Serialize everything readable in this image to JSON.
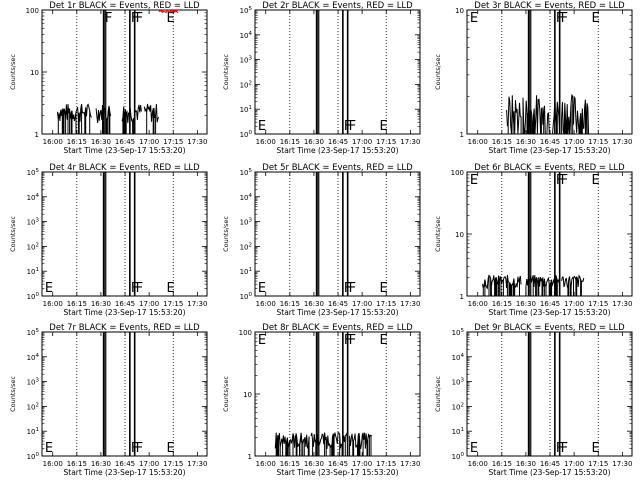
{
  "panel_x_axis_label": "Start Time (23-Sep-17 15:53:20)",
  "panel_y_axis_label": "Counts/sec",
  "x_tick_labels": [
    "16:00",
    "16:15",
    "16:30",
    "16:45",
    "17:00",
    "17:15",
    "17:30"
  ],
  "colors": {
    "events": "#000000",
    "lld": "#ff0000",
    "background": "#ffffff"
  },
  "chart_data": [
    {
      "type": "line",
      "title": "Det 1r BLACK = Events, RED = LLD",
      "xlabel": "Start Time (23-Sep-17 15:53:20)",
      "ylabel": "Counts/sec",
      "yscale": "log",
      "ylim": [
        1,
        100
      ],
      "y_tick_labels": [
        "1",
        "10",
        "100"
      ],
      "flags": [
        {
          "label": "F",
          "pos": "top"
        },
        {
          "label": "F",
          "pos": "top"
        },
        {
          "label": "F",
          "pos": "top"
        },
        {
          "label": "E",
          "pos": "top"
        }
      ],
      "series": [
        {
          "name": "Events",
          "color": "#000000",
          "level": 2.3,
          "spread": 0.35,
          "segments": [
            [
              16.05,
              16.4
            ],
            [
              16.45,
              16.6
            ],
            [
              16.72,
              16.92
            ],
            [
              16.95,
              17.1
            ]
          ]
        },
        {
          "name": "LLD",
          "color": "#ff0000",
          "level": 95,
          "spread": 0.05,
          "segments": [
            [
              17.1,
              17.3
            ]
          ]
        }
      ]
    },
    {
      "type": "line",
      "title": "Det 2r BLACK = Events, RED = LLD",
      "xlabel": "Start Time (23-Sep-17 15:53:20)",
      "ylabel": "Counts/sec",
      "yscale": "log",
      "ylim": [
        1,
        100000
      ],
      "y_tick_labels": [
        "10^0",
        "10^1",
        "10^2",
        "10^3",
        "10^4",
        "10^5"
      ],
      "flags": [
        {
          "label": "E",
          "pos": "bottom"
        },
        {
          "label": "F",
          "pos": "bottom"
        },
        {
          "label": "F",
          "pos": "bottom"
        },
        {
          "label": "E",
          "pos": "bottom"
        }
      ],
      "series": []
    },
    {
      "type": "line",
      "title": "Det 3r BLACK = Events, RED = LLD",
      "xlabel": "Start Time (23-Sep-17 15:53:20)",
      "ylabel": "Counts/sec",
      "yscale": "log",
      "ylim": [
        1,
        10
      ],
      "y_tick_labels": [
        "1",
        "10"
      ],
      "flags": [
        {
          "label": "E",
          "pos": "top"
        },
        {
          "label": "F",
          "pos": "top"
        },
        {
          "label": "F",
          "pos": "top"
        },
        {
          "label": "E",
          "pos": "top"
        }
      ],
      "series": [
        {
          "name": "Events",
          "color": "#000000",
          "level": 1.45,
          "spread": 0.45,
          "segments": [
            [
              16.3,
              16.45
            ],
            [
              16.47,
              16.85
            ],
            [
              16.87,
              17.15
            ]
          ]
        }
      ]
    },
    {
      "type": "line",
      "title": "Det 4r BLACK = Events, RED = LLD",
      "xlabel": "Start Time (23-Sep-17 15:53:20)",
      "ylabel": "Counts/sec",
      "yscale": "log",
      "ylim": [
        1,
        100000
      ],
      "y_tick_labels": [
        "10^0",
        "10^1",
        "10^2",
        "10^3",
        "10^4",
        "10^5"
      ],
      "flags": [
        {
          "label": "E",
          "pos": "bottom"
        },
        {
          "label": "F",
          "pos": "bottom"
        },
        {
          "label": "F",
          "pos": "bottom"
        },
        {
          "label": "E",
          "pos": "bottom"
        }
      ],
      "series": []
    },
    {
      "type": "line",
      "title": "Det 5r BLACK = Events, RED = LLD",
      "xlabel": "Start Time (23-Sep-17 15:53:20)",
      "ylabel": "Counts/sec",
      "yscale": "log",
      "ylim": [
        1,
        100000
      ],
      "y_tick_labels": [
        "10^0",
        "10^1",
        "10^2",
        "10^3",
        "10^4",
        "10^5"
      ],
      "flags": [
        {
          "label": "E",
          "pos": "bottom"
        },
        {
          "label": "F",
          "pos": "bottom"
        },
        {
          "label": "F",
          "pos": "bottom"
        },
        {
          "label": "E",
          "pos": "bottom"
        }
      ],
      "series": []
    },
    {
      "type": "line",
      "title": "Det 6r BLACK = Events, RED = LLD",
      "xlabel": "Start Time (23-Sep-17 15:53:20)",
      "ylabel": "Counts/sec",
      "yscale": "log",
      "ylim": [
        1,
        100
      ],
      "y_tick_labels": [
        "1",
        "10",
        "100"
      ],
      "flags": [
        {
          "label": "E",
          "pos": "top"
        },
        {
          "label": "F",
          "pos": "top"
        },
        {
          "label": "F",
          "pos": "top"
        },
        {
          "label": "E",
          "pos": "top"
        }
      ],
      "series": [
        {
          "name": "Events",
          "color": "#000000",
          "level": 1.75,
          "spread": 0.25,
          "segments": [
            [
              16.05,
              16.45
            ],
            [
              16.5,
              16.85
            ],
            [
              16.87,
              17.1
            ]
          ]
        }
      ]
    },
    {
      "type": "line",
      "title": "Det 7r BLACK = Events, RED = LLD",
      "xlabel": "Start Time (23-Sep-17 15:53:20)",
      "ylabel": "Counts/sec",
      "yscale": "log",
      "ylim": [
        1,
        100000
      ],
      "y_tick_labels": [
        "10^0",
        "10^1",
        "10^2",
        "10^3",
        "10^4",
        "10^5"
      ],
      "flags": [
        {
          "label": "E",
          "pos": "bottom"
        },
        {
          "label": "F",
          "pos": "bottom"
        },
        {
          "label": "F",
          "pos": "bottom"
        },
        {
          "label": "E",
          "pos": "bottom"
        }
      ],
      "series": []
    },
    {
      "type": "line",
      "title": "Det 8r BLACK = Events, RED = LLD",
      "xlabel": "Start Time (23-Sep-17 15:53:20)",
      "ylabel": "Counts/sec",
      "yscale": "log",
      "ylim": [
        1,
        100
      ],
      "y_tick_labels": [
        "1",
        "10",
        "100"
      ],
      "flags": [
        {
          "label": "E",
          "pos": "top"
        },
        {
          "label": "F",
          "pos": "top"
        },
        {
          "label": "F",
          "pos": "top"
        },
        {
          "label": "E",
          "pos": "top"
        }
      ],
      "series": [
        {
          "name": "Events",
          "color": "#000000",
          "level": 1.85,
          "spread": 0.3,
          "segments": [
            [
              16.1,
              16.45
            ],
            [
              16.47,
              16.85
            ],
            [
              16.87,
              17.1
            ]
          ]
        }
      ]
    },
    {
      "type": "line",
      "title": "Det 9r BLACK = Events, RED = LLD",
      "xlabel": "Start Time (23-Sep-17 15:53:20)",
      "ylabel": "Counts/sec",
      "yscale": "log",
      "ylim": [
        1,
        100000
      ],
      "y_tick_labels": [
        "10^0",
        "10^1",
        "10^2",
        "10^3",
        "10^4",
        "10^5"
      ],
      "flags": [
        {
          "label": "E",
          "pos": "bottom"
        },
        {
          "label": "F",
          "pos": "bottom"
        },
        {
          "label": "F",
          "pos": "bottom"
        },
        {
          "label": "E",
          "pos": "bottom"
        }
      ],
      "series": []
    }
  ]
}
